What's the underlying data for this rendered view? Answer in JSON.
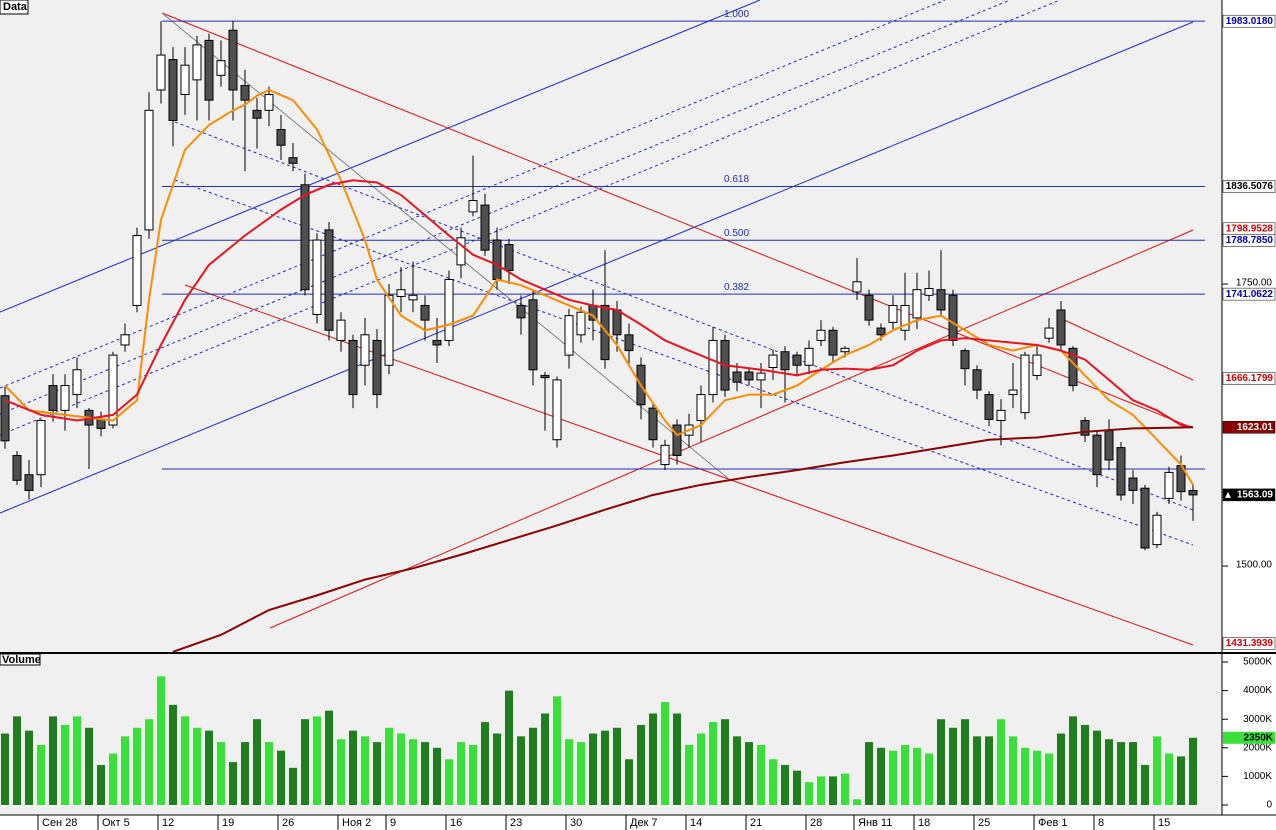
{
  "chart_data": [
    {
      "type": "candlestick",
      "title": "Data",
      "categories": [
        null,
        null,
        null,
        "Сен 28",
        null,
        null,
        null,
        null,
        "Окт 5",
        null,
        null,
        null,
        null,
        "12",
        null,
        null,
        null,
        null,
        "19",
        null,
        null,
        null,
        null,
        "26",
        null,
        null,
        null,
        null,
        "Ноя 2",
        null,
        null,
        null,
        "9",
        null,
        null,
        null,
        null,
        "16",
        null,
        null,
        null,
        null,
        "23",
        null,
        null,
        null,
        null,
        "30",
        null,
        null,
        null,
        null,
        "Дек 7",
        null,
        null,
        null,
        null,
        "14",
        null,
        null,
        null,
        null,
        "21",
        null,
        null,
        null,
        null,
        "28",
        null,
        null,
        null,
        "Янв 11",
        null,
        null,
        null,
        null,
        "18",
        null,
        null,
        null,
        null,
        "25",
        null,
        null,
        null,
        null,
        "Фев 1",
        null,
        null,
        null,
        null,
        "8",
        null,
        null,
        null,
        null,
        "15",
        null,
        null,
        null
      ],
      "open": [
        1651,
        1598,
        1581,
        1581,
        1660,
        1638,
        1652,
        1638,
        1630,
        1625,
        1696,
        1731,
        1798,
        1922,
        1949,
        1918,
        1931,
        1966,
        1935,
        1975,
        1926,
        1904,
        1904,
        1887,
        1862,
        1838,
        1723,
        1798,
        1700,
        1700,
        1678,
        1700,
        1678,
        1739,
        1736,
        1731,
        1700,
        1700,
        1767,
        1814,
        1820,
        1789,
        1785,
        1731,
        1736,
        1669,
        1612,
        1687,
        1705,
        1731,
        1731,
        1727,
        1705,
        1678,
        1640,
        1590,
        1625,
        1616,
        1629,
        1652,
        1700,
        1672,
        1672,
        1665,
        1676,
        1690,
        1687,
        1678,
        1700,
        1709,
        1690,
        1743,
        1740,
        1711,
        1716,
        1709,
        1720,
        1740,
        1745,
        1740,
        1691,
        1674,
        1652,
        1629,
        1652,
        1636,
        1669,
        1702,
        1727,
        1693,
        1629,
        1616,
        1620,
        1605,
        1578,
        1569,
        1519,
        1560,
        1589,
        1567
      ],
      "high": [
        1660,
        1602,
        1594,
        1630,
        1670,
        1670,
        1685,
        1640,
        1637,
        1690,
        1715,
        1800,
        1920,
        1983,
        1960,
        1960,
        1970,
        1972,
        1966,
        1983,
        1940,
        1915,
        1925,
        1900,
        1875,
        1848,
        1795,
        1805,
        1725,
        1705,
        1720,
        1710,
        1750,
        1765,
        1770,
        1740,
        1720,
        1762,
        1800,
        1864,
        1830,
        1800,
        1790,
        1740,
        1745,
        1672,
        1668,
        1728,
        1730,
        1745,
        1780,
        1735,
        1715,
        1685,
        1645,
        1612,
        1630,
        1635,
        1660,
        1712,
        1705,
        1680,
        1675,
        1680,
        1692,
        1695,
        1690,
        1700,
        1718,
        1712,
        1695,
        1773,
        1745,
        1715,
        1740,
        1760,
        1760,
        1762,
        1780,
        1745,
        1693,
        1678,
        1655,
        1648,
        1680,
        1690,
        1695,
        1720,
        1735,
        1695,
        1632,
        1620,
        1630,
        1610,
        1585,
        1572,
        1548,
        1588,
        1598,
        1573
      ],
      "low": [
        1604,
        1572,
        1559,
        1570,
        1628,
        1620,
        1640,
        1586,
        1615,
        1622,
        1690,
        1725,
        1790,
        1910,
        1872,
        1900,
        1895,
        1895,
        1925,
        1895,
        1850,
        1870,
        1890,
        1860,
        1850,
        1740,
        1715,
        1700,
        1690,
        1640,
        1660,
        1640,
        1670,
        1725,
        1725,
        1700,
        1680,
        1695,
        1755,
        1810,
        1775,
        1745,
        1750,
        1705,
        1660,
        1620,
        1605,
        1675,
        1698,
        1700,
        1675,
        1690,
        1680,
        1630,
        1605,
        1585,
        1590,
        1605,
        1610,
        1645,
        1650,
        1655,
        1660,
        1640,
        1665,
        1645,
        1668,
        1670,
        1695,
        1680,
        1685,
        1736,
        1713,
        1700,
        1710,
        1700,
        1710,
        1735,
        1722,
        1695,
        1660,
        1648,
        1624,
        1607,
        1640,
        1630,
        1665,
        1698,
        1690,
        1655,
        1610,
        1570,
        1585,
        1558,
        1555,
        1514,
        1516,
        1555,
        1558,
        1540
      ],
      "close": [
        1611,
        1576,
        1567,
        1629,
        1638,
        1660,
        1674,
        1625,
        1622,
        1687,
        1705,
        1793,
        1904,
        1953,
        1895,
        1944,
        1962,
        1913,
        1948,
        1922,
        1913,
        1897,
        1918,
        1873,
        1857,
        1745,
        1789,
        1709,
        1718,
        1652,
        1705,
        1652,
        1740,
        1745,
        1740,
        1718,
        1696,
        1754,
        1791,
        1824,
        1780,
        1754,
        1762,
        1720,
        1674,
        1667,
        1665,
        1722,
        1725,
        1718,
        1683,
        1705,
        1691,
        1643,
        1612,
        1607,
        1598,
        1625,
        1652,
        1700,
        1656,
        1663,
        1665,
        1671,
        1687,
        1674,
        1678,
        1693,
        1709,
        1687,
        1693,
        1752,
        1718,
        1705,
        1731,
        1731,
        1745,
        1746,
        1727,
        1700,
        1675,
        1656,
        1630,
        1638,
        1656,
        1687,
        1687,
        1711,
        1696,
        1660,
        1616,
        1581,
        1594,
        1563,
        1567,
        1516,
        1545,
        1583,
        1566,
        1563.09
      ],
      "up_color": "#ffffff",
      "down_color": "#505050",
      "ylim": [
        1423.8,
        2001.8
      ],
      "yticks": [
        {
          "value": 1500,
          "label": "1500.00"
        },
        {
          "value": 1750,
          "label": "1750.00"
        }
      ],
      "lines": [
        {
          "color": "#ff8c00",
          "x": [
            0,
            2,
            5,
            9,
            11,
            12,
            13,
            15,
            17,
            19,
            20,
            21,
            22,
            24,
            26,
            28,
            30,
            31,
            33,
            35,
            37,
            39,
            41,
            43,
            45,
            47,
            49,
            51,
            53,
            55,
            56,
            58,
            60,
            62,
            64,
            66,
            68,
            70,
            72,
            74,
            76,
            78,
            80,
            82,
            84,
            86,
            88,
            90,
            92,
            94,
            96,
            98,
            99
          ],
          "values": [
            1660,
            1638,
            1634,
            1629,
            1647,
            1736,
            1807,
            1869,
            1891,
            1904,
            1909,
            1917,
            1922,
            1913,
            1887,
            1842,
            1789,
            1754,
            1722,
            1709,
            1714,
            1722,
            1754,
            1749,
            1740,
            1731,
            1722,
            1696,
            1660,
            1629,
            1616,
            1625,
            1647,
            1652,
            1652,
            1660,
            1674,
            1687,
            1696,
            1709,
            1718,
            1722,
            1709,
            1696,
            1691,
            1696,
            1691,
            1669,
            1647,
            1634,
            1612,
            1590,
            1572
          ]
        },
        {
          "color": "#e8141e",
          "x": [
            0,
            3,
            6,
            9,
            11,
            13,
            15,
            17,
            20,
            23,
            25,
            27,
            29,
            31,
            33,
            35,
            37,
            39,
            41,
            43,
            45,
            47,
            49,
            51,
            53,
            55,
            57,
            60,
            63,
            66,
            68,
            70,
            72,
            74,
            76,
            78,
            80,
            82,
            84,
            86,
            88,
            90,
            92,
            94,
            96,
            98,
            99
          ],
          "values": [
            1647,
            1634,
            1629,
            1634,
            1652,
            1696,
            1736,
            1767,
            1793,
            1816,
            1829,
            1838,
            1842,
            1840,
            1829,
            1811,
            1793,
            1776,
            1767,
            1754,
            1745,
            1736,
            1731,
            1727,
            1714,
            1700,
            1691,
            1678,
            1674,
            1669,
            1674,
            1675,
            1674,
            1678,
            1691,
            1700,
            1702,
            1700,
            1698,
            1696,
            1691,
            1683,
            1665,
            1647,
            1638,
            1625,
            1623
          ]
        },
        {
          "color": "#8b0000",
          "x": [
            14,
            18,
            22,
            26,
            30,
            34,
            38,
            42,
            46,
            50,
            54,
            58,
            62,
            66,
            70,
            74,
            78,
            82,
            86,
            90,
            94,
            99
          ],
          "values": [
            1424,
            1439,
            1461,
            1474,
            1488,
            1498,
            1510,
            1523,
            1536,
            1550,
            1563,
            1572,
            1579,
            1585,
            1592,
            1598,
            1605,
            1612,
            1614,
            1619,
            1622,
            1623.01
          ]
        }
      ],
      "fib_levels": [
        {
          "ratio": "1.000",
          "value": 1983.018
        },
        {
          "ratio": "0.618",
          "value": 1836.5076
        },
        {
          "ratio": "0.500",
          "value": 1788.785
        },
        {
          "ratio": "0.382",
          "value": 1741.0622
        },
        {
          "value": 1586
        }
      ],
      "fib_color": "#2030b0",
      "price_tags": [
        {
          "value": 1983.018,
          "label": "1983.0180",
          "fg": "#0000b0",
          "bg": "#ffffff"
        },
        {
          "value": 1836.5076,
          "label": "1836.5076",
          "fg": "#000000",
          "bg": "#ffffff"
        },
        {
          "value": 1798.9528,
          "label": "1798.9528",
          "fg": "#d00000",
          "bg": "#ffffff"
        },
        {
          "value": 1788.785,
          "label": "1788.7850",
          "fg": "#0000b0",
          "bg": "#ffffff"
        },
        {
          "value": 1741.0622,
          "label": "1741.0622",
          "fg": "#0000b0",
          "bg": "#ffffff"
        },
        {
          "value": 1666.1799,
          "label": "1666.1799",
          "fg": "#d00000",
          "bg": "#ffffff"
        },
        {
          "value": 1623.01,
          "label": "1623.01",
          "fg": "#ffffff",
          "bg": "#8b0000"
        },
        {
          "value": 1563.09,
          "label": "1563.09",
          "fg": "#ffffff",
          "bg": "#000000"
        },
        {
          "value": 1431.3939,
          "label": "1431.3939",
          "fg": "#d00000",
          "bg": "#ffffff"
        }
      ]
    },
    {
      "type": "bar",
      "title": "Volume",
      "values": [
        2500000,
        3100000,
        2600000,
        2100000,
        3100000,
        2800000,
        3100000,
        2700000,
        1400000,
        1800000,
        2400000,
        2700000,
        3000000,
        4500000,
        3500000,
        3100000,
        2700000,
        2600000,
        2200000,
        1500000,
        2200000,
        3000000,
        2200000,
        1900000,
        1300000,
        3000000,
        3100000,
        3300000,
        2300000,
        2600000,
        2400000,
        2200000,
        2700000,
        2500000,
        2300000,
        2200000,
        2000000,
        1600000,
        2200000,
        2100000,
        2900000,
        2500000,
        4000000,
        2400000,
        2700000,
        3200000,
        3800000,
        2300000,
        2200000,
        2500000,
        2600000,
        2700000,
        1600000,
        2800000,
        3200000,
        3600000,
        3200000,
        2100000,
        2500000,
        2900000,
        3000000,
        2400000,
        2200000,
        2100000,
        1600000,
        1400000,
        1200000,
        800000,
        1000000,
        1000000,
        1100000,
        200000,
        2200000,
        2000000,
        1900000,
        2100000,
        2000000,
        1800000,
        3000000,
        2700000,
        3000000,
        2400000,
        2400000,
        3000000,
        2400000,
        2000000,
        1900000,
        1800000,
        2500000,
        3100000,
        2800000,
        2600000,
        2300000,
        2200000,
        2200000,
        1400000,
        2400000,
        1800000,
        1700000,
        2350000
      ],
      "up_color": "#3ae03a",
      "down_color": "#1f7f1f",
      "ylim": [
        0,
        5245000
      ],
      "yticks": [
        0,
        {
          "value": 1000000,
          "label": "1000K"
        },
        {
          "value": 2000000,
          "label": "2000K"
        },
        {
          "value": 3000000,
          "label": "3000K"
        },
        {
          "value": 4000000,
          "label": "4000K"
        },
        {
          "value": 5000000,
          "label": "5000K"
        }
      ],
      "last_tag": {
        "value": 2350000,
        "label": "2350K",
        "fg": "#000000",
        "bg": "#3ae03a"
      }
    }
  ]
}
